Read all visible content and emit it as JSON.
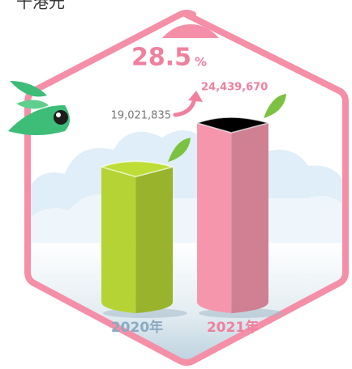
{
  "chart_data": {
    "type": "bar",
    "y_label": "千港元",
    "categories": [
      "2020年",
      "2021年"
    ],
    "values": [
      19021835,
      24439670
    ],
    "value_labels": [
      "19,021,835",
      "24,439,670"
    ],
    "colors": [
      "#b5d334",
      "#f596ad"
    ],
    "label_colors": [
      "#8aaac2",
      "#f0809d"
    ],
    "change": 28.5,
    "change_unit": "%"
  }
}
